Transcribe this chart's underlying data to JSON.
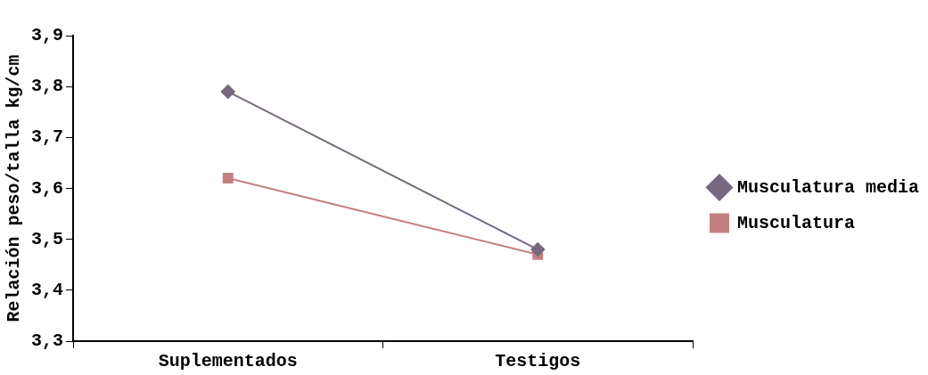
{
  "chart_data": {
    "type": "line",
    "ylabel": "Relación peso/talla kg/cm",
    "categories": [
      "Suplementados",
      "Testigos"
    ],
    "series": [
      {
        "name": "Musculatura media",
        "color": "#76687f",
        "values": [
          3.79,
          3.48
        ],
        "marker": "diamond"
      },
      {
        "name": "Musculatura",
        "color": "#c48080",
        "values": [
          3.62,
          3.47
        ],
        "marker": "square"
      }
    ],
    "ylim": [
      3.3,
      3.9
    ],
    "yticks": [
      {
        "value": 3.3,
        "label": "3,3"
      },
      {
        "value": 3.4,
        "label": "3,4"
      },
      {
        "value": 3.5,
        "label": "3,5"
      },
      {
        "value": 3.6,
        "label": "3,6"
      },
      {
        "value": 3.7,
        "label": "3,7"
      },
      {
        "value": 3.8,
        "label": "3,8"
      },
      {
        "value": 3.9,
        "label": "3,9"
      }
    ],
    "grid": false,
    "legend": "right"
  }
}
